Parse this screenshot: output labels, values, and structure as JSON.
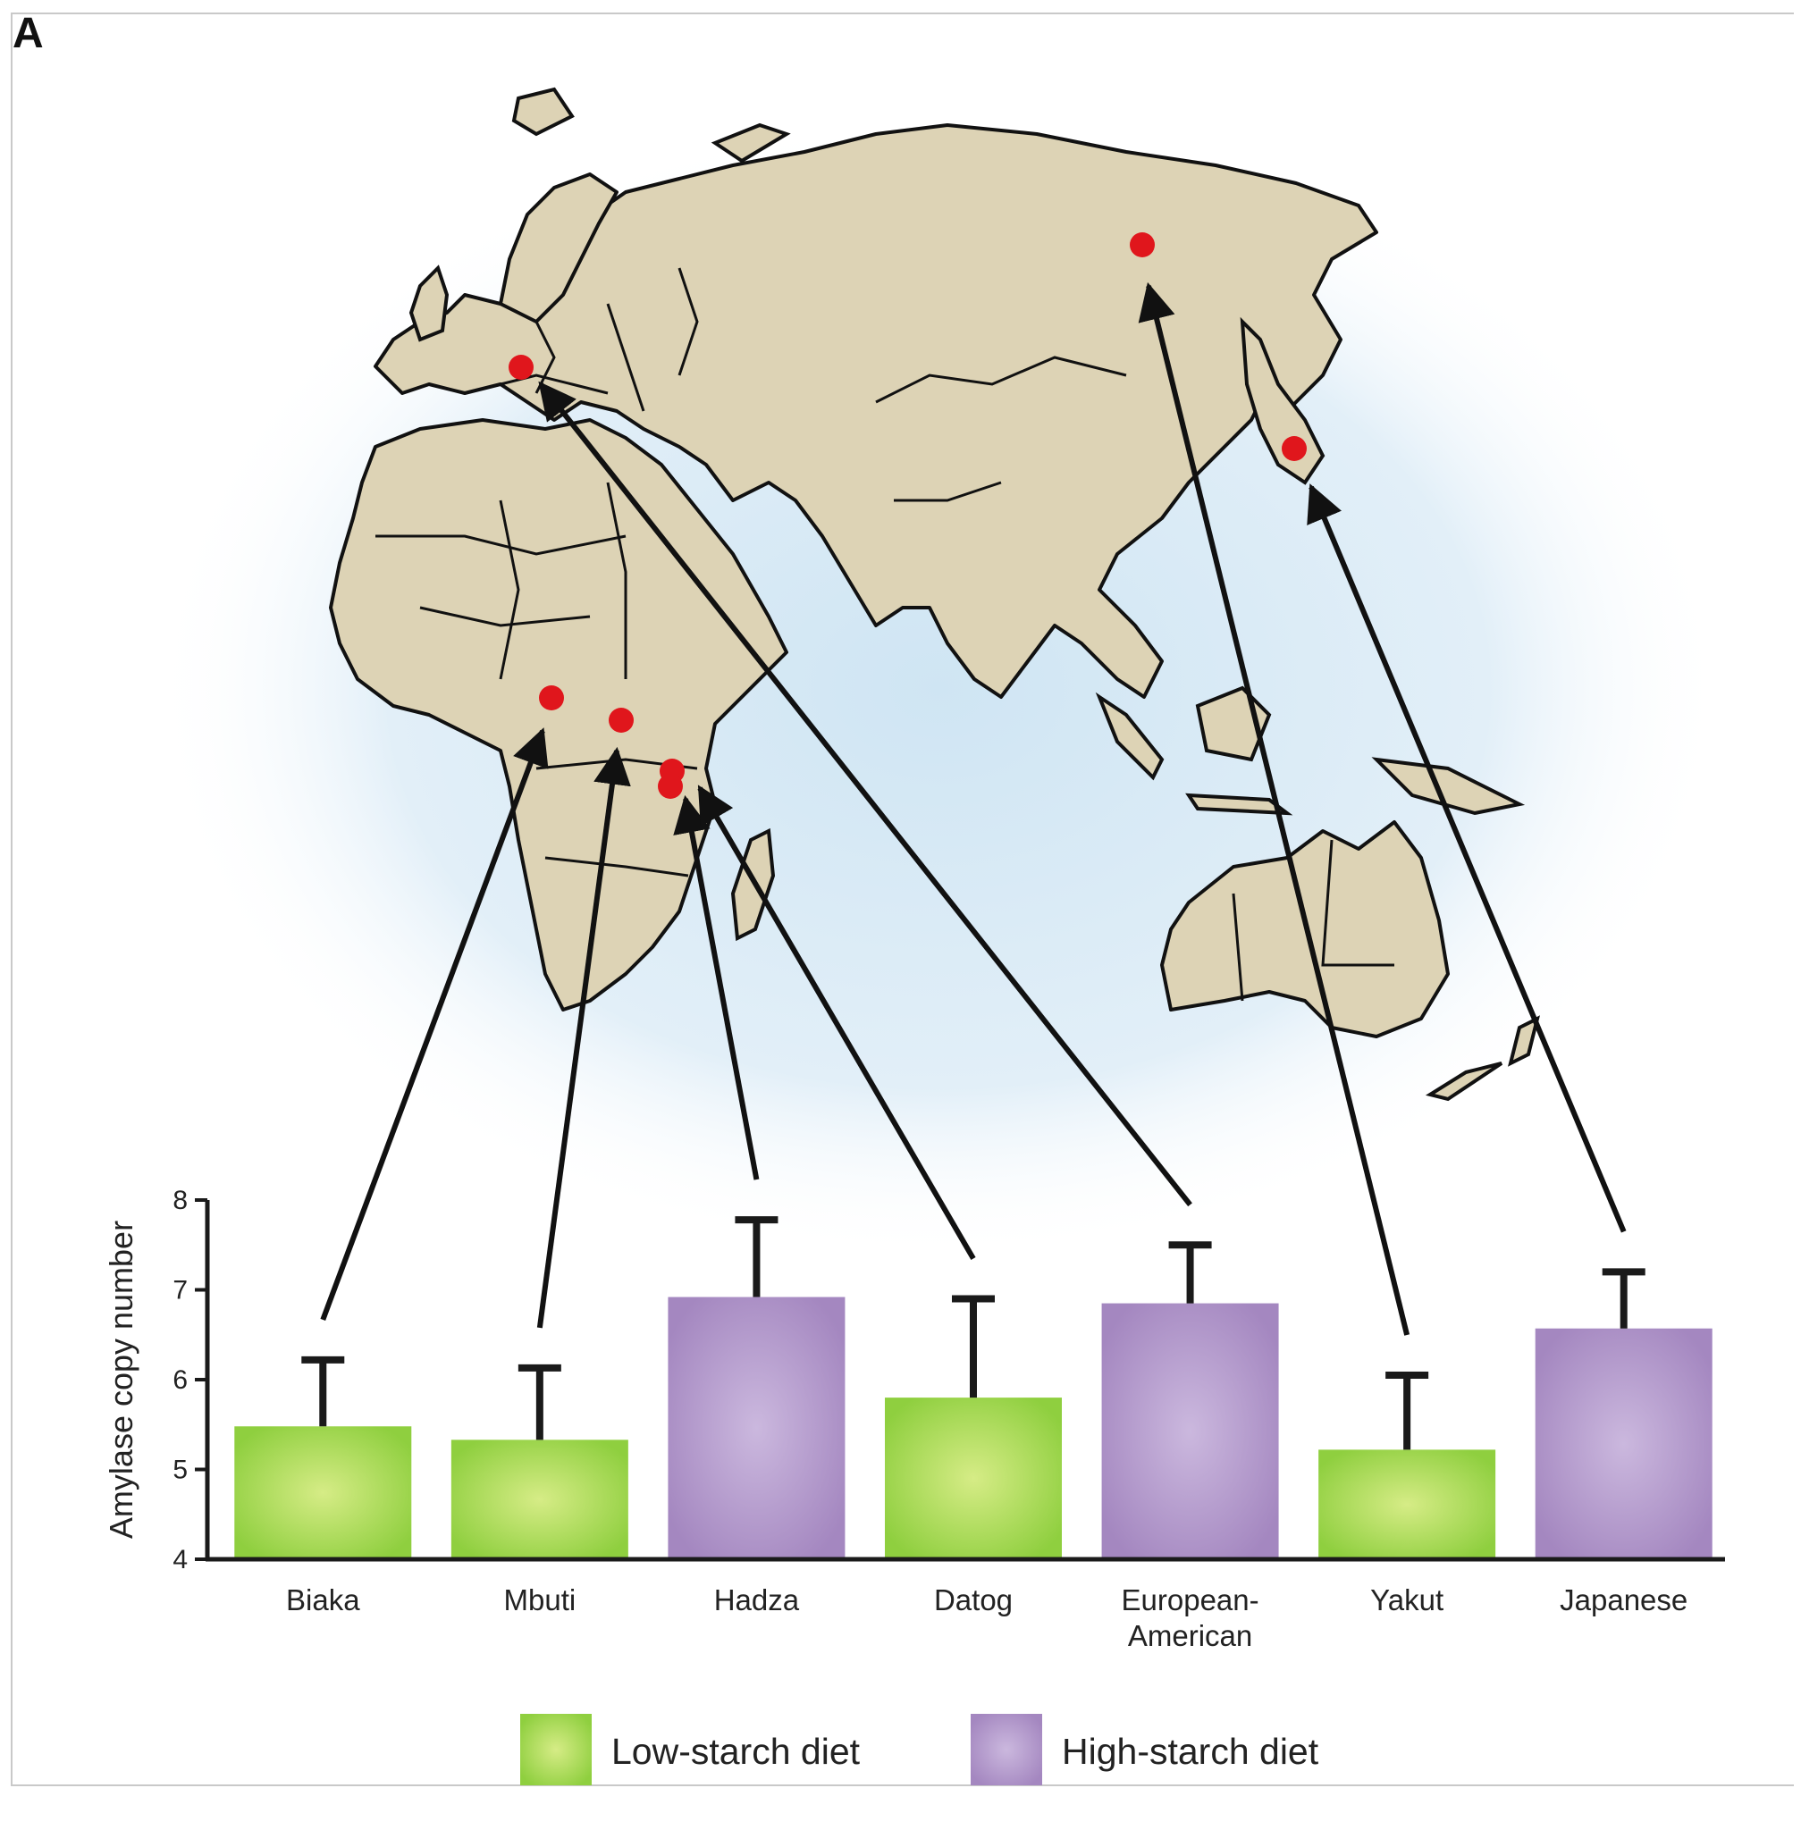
{
  "panel_label": "A",
  "colors": {
    "low_starch": "#8fcf3f",
    "low_starch_light": "#cde87a",
    "high_starch": "#a98bc2",
    "high_starch_light": "#c8b3dc",
    "land": "#ddd3b5",
    "ocean_glow": "#d4e8f4",
    "site_marker": "#e0161c",
    "axis": "#1a1a1a"
  },
  "map": {
    "description_icon": "world-map-eurasia-africa-australia",
    "sites": [
      {
        "population": "Biaka"
      },
      {
        "population": "Mbuti"
      },
      {
        "population": "Hadza"
      },
      {
        "population": "Datog"
      },
      {
        "population": "European-American"
      },
      {
        "population": "Yakut"
      },
      {
        "population": "Japanese"
      }
    ]
  },
  "chart_data": {
    "type": "bar",
    "categories": [
      "Biaka",
      "Mbuti",
      "Hadza",
      "Datog",
      "European-American",
      "Yakut",
      "Japanese"
    ],
    "category_lines": [
      [
        "Biaka"
      ],
      [
        "Mbuti"
      ],
      [
        "Hadza"
      ],
      [
        "Datog"
      ],
      [
        "European-",
        "American"
      ],
      [
        "Yakut"
      ],
      [
        "Japanese"
      ]
    ],
    "values": [
      5.48,
      5.33,
      6.92,
      5.8,
      6.85,
      5.22,
      6.57
    ],
    "error_upper": [
      6.22,
      6.13,
      7.78,
      6.9,
      7.5,
      6.05,
      7.2
    ],
    "diet": [
      "low",
      "low",
      "high",
      "low",
      "high",
      "low",
      "high"
    ],
    "ylabel": "Amylase copy number",
    "xlabel": "",
    "title": "",
    "ylim": [
      4,
      8
    ],
    "yticks": [
      4,
      5,
      6,
      7,
      8
    ],
    "grid": false,
    "legend_position": "bottom-center",
    "legend": [
      {
        "key": "low",
        "label": "Low-starch diet"
      },
      {
        "key": "high",
        "label": "High-starch diet"
      }
    ]
  }
}
